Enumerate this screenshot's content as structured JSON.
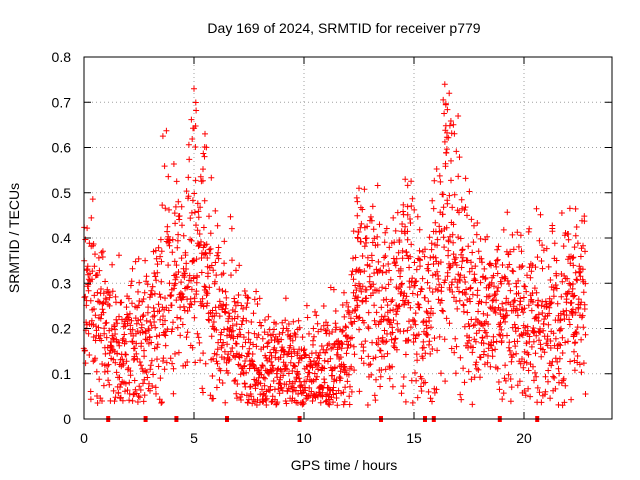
{
  "chart_data": {
    "type": "scatter",
    "title": "Day 169 of 2024, SRMTID for receiver p779",
    "xlabel": "GPS time / hours",
    "ylabel": "SRMTID / TECUs",
    "xlim": [
      0,
      24
    ],
    "ylim": [
      0,
      0.8
    ],
    "x_ticks": [
      {
        "value": 0,
        "label": "0"
      },
      {
        "value": 5,
        "label": "5"
      },
      {
        "value": 10,
        "label": "10"
      },
      {
        "value": 15,
        "label": "15"
      },
      {
        "value": 20,
        "label": "20"
      }
    ],
    "y_ticks": [
      {
        "value": 0,
        "label": "0"
      },
      {
        "value": 0.1,
        "label": "0.1"
      },
      {
        "value": 0.2,
        "label": "0.2"
      },
      {
        "value": 0.3,
        "label": "0.3"
      },
      {
        "value": 0.4,
        "label": "0.4"
      },
      {
        "value": 0.5,
        "label": "0.5"
      },
      {
        "value": 0.6,
        "label": "0.6"
      },
      {
        "value": 0.7,
        "label": "0.7"
      },
      {
        "value": 0.8,
        "label": "0.8"
      }
    ],
    "grid": true,
    "marker": "+",
    "color": "#ff0000",
    "series": [
      {
        "name": "SRMTID",
        "envelope_points": [
          {
            "x": 0.0,
            "y": 0.26
          },
          {
            "x": 0.3,
            "y": 0.28
          },
          {
            "x": 0.6,
            "y": 0.22
          },
          {
            "x": 1.0,
            "y": 0.17
          },
          {
            "x": 1.5,
            "y": 0.16
          },
          {
            "x": 2.0,
            "y": 0.17
          },
          {
            "x": 2.5,
            "y": 0.18
          },
          {
            "x": 3.0,
            "y": 0.18
          },
          {
            "x": 3.4,
            "y": 0.25
          },
          {
            "x": 3.8,
            "y": 0.32
          },
          {
            "x": 4.2,
            "y": 0.3
          },
          {
            "x": 4.6,
            "y": 0.32
          },
          {
            "x": 5.0,
            "y": 0.4
          },
          {
            "x": 5.4,
            "y": 0.36
          },
          {
            "x": 5.8,
            "y": 0.28
          },
          {
            "x": 6.2,
            "y": 0.22
          },
          {
            "x": 6.6,
            "y": 0.2
          },
          {
            "x": 7.0,
            "y": 0.16
          },
          {
            "x": 7.5,
            "y": 0.14
          },
          {
            "x": 8.0,
            "y": 0.12
          },
          {
            "x": 8.5,
            "y": 0.11
          },
          {
            "x": 9.0,
            "y": 0.11
          },
          {
            "x": 9.5,
            "y": 0.12
          },
          {
            "x": 10.0,
            "y": 0.11
          },
          {
            "x": 10.5,
            "y": 0.11
          },
          {
            "x": 11.0,
            "y": 0.12
          },
          {
            "x": 11.5,
            "y": 0.13
          },
          {
            "x": 12.0,
            "y": 0.15
          },
          {
            "x": 12.4,
            "y": 0.25
          },
          {
            "x": 12.8,
            "y": 0.3
          },
          {
            "x": 13.2,
            "y": 0.28
          },
          {
            "x": 13.6,
            "y": 0.22
          },
          {
            "x": 14.0,
            "y": 0.24
          },
          {
            "x": 14.4,
            "y": 0.28
          },
          {
            "x": 14.8,
            "y": 0.3
          },
          {
            "x": 15.2,
            "y": 0.24
          },
          {
            "x": 15.6,
            "y": 0.22
          },
          {
            "x": 16.0,
            "y": 0.3
          },
          {
            "x": 16.4,
            "y": 0.38
          },
          {
            "x": 16.8,
            "y": 0.36
          },
          {
            "x": 17.2,
            "y": 0.28
          },
          {
            "x": 17.6,
            "y": 0.24
          },
          {
            "x": 18.0,
            "y": 0.22
          },
          {
            "x": 18.5,
            "y": 0.22
          },
          {
            "x": 19.0,
            "y": 0.23
          },
          {
            "x": 19.5,
            "y": 0.22
          },
          {
            "x": 20.0,
            "y": 0.2
          },
          {
            "x": 20.5,
            "y": 0.2
          },
          {
            "x": 21.0,
            "y": 0.21
          },
          {
            "x": 21.5,
            "y": 0.22
          },
          {
            "x": 22.0,
            "y": 0.25
          },
          {
            "x": 22.5,
            "y": 0.26
          },
          {
            "x": 22.8,
            "y": 0.27
          }
        ],
        "notable_peaks": [
          {
            "x": 5.0,
            "y": 0.73
          },
          {
            "x": 5.5,
            "y": 0.63
          },
          {
            "x": 16.4,
            "y": 0.74
          },
          {
            "x": 16.6,
            "y": 0.72
          },
          {
            "x": 14.6,
            "y": 0.53
          },
          {
            "x": 12.5,
            "y": 0.51
          },
          {
            "x": 22.3,
            "y": 0.38
          }
        ]
      }
    ],
    "data_gaps_at_zero": [
      1.1,
      2.8,
      4.2,
      6.5,
      9.8,
      13.5,
      15.5,
      15.9,
      18.9,
      20.6
    ]
  }
}
